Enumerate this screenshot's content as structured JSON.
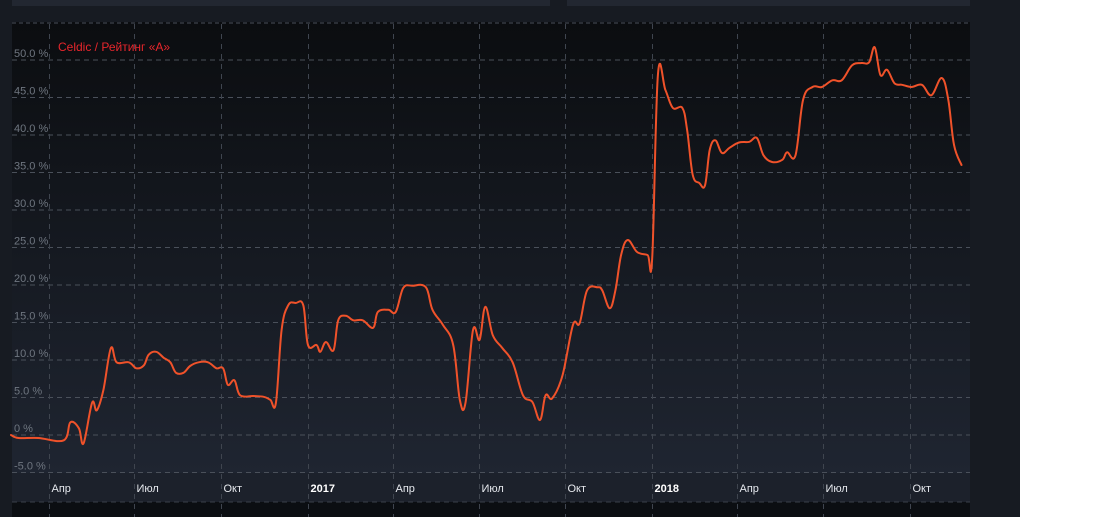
{
  "colors": {
    "line": "#f0522a",
    "title": "#e8262c",
    "background": "#0e1116"
  },
  "chart_data": {
    "type": "line",
    "title": "Celdic / Рейтинг «A»",
    "xlabel": "",
    "ylabel": "",
    "ylim": [
      -5,
      50
    ],
    "y_ticks": [
      "50.0 %",
      "45.0 %",
      "40.0 %",
      "35.0 %",
      "30.0 %",
      "25.0 %",
      "20.0 %",
      "15.0 %",
      "10.0 %",
      "5.0 %",
      "0 %",
      "-5.0 %"
    ],
    "y_tick_values": [
      50,
      45,
      40,
      35,
      30,
      25,
      20,
      15,
      10,
      5,
      0,
      -5
    ],
    "x_ticks": [
      {
        "date": "2016-04-01",
        "label": "Апр"
      },
      {
        "date": "2016-07-01",
        "label": "Июл"
      },
      {
        "date": "2016-10-01",
        "label": "Окт"
      },
      {
        "date": "2017-01-01",
        "label": "2017",
        "year": true
      },
      {
        "date": "2017-04-01",
        "label": "Апр"
      },
      {
        "date": "2017-07-01",
        "label": "Июл"
      },
      {
        "date": "2017-10-01",
        "label": "Окт"
      },
      {
        "date": "2018-01-01",
        "label": "2018",
        "year": true
      },
      {
        "date": "2018-04-01",
        "label": "Апр"
      },
      {
        "date": "2018-07-01",
        "label": "Июл"
      },
      {
        "date": "2018-10-01",
        "label": "Окт"
      }
    ],
    "grid": true,
    "series": [
      {
        "x": [
          "2016-02-21",
          "2016-02-29",
          "2016-03-21",
          "2016-04-17",
          "2016-04-24",
          "2016-05-03",
          "2016-05-08",
          "2016-05-17",
          "2016-05-22",
          "2016-05-29",
          "2016-06-06",
          "2016-06-12",
          "2016-06-25",
          "2016-07-03",
          "2016-07-11",
          "2016-07-16",
          "2016-07-24",
          "2016-08-01",
          "2016-08-08",
          "2016-08-14",
          "2016-08-22",
          "2016-08-29",
          "2016-09-07",
          "2016-09-17",
          "2016-09-26",
          "2016-10-03",
          "2016-10-08",
          "2016-10-15",
          "2016-10-21",
          "2016-11-04",
          "2016-11-15",
          "2016-11-22",
          "2016-11-28",
          "2016-12-04",
          "2016-12-11",
          "2016-12-19",
          "2016-12-27",
          "2017-01-01",
          "2017-01-10",
          "2017-01-14",
          "2017-01-20",
          "2017-01-28",
          "2017-02-02",
          "2017-02-10",
          "2017-02-18",
          "2017-02-28",
          "2017-03-11",
          "2017-03-16",
          "2017-03-27",
          "2017-04-04",
          "2017-04-12",
          "2017-04-22",
          "2017-05-06",
          "2017-05-13",
          "2017-05-24",
          "2017-06-04",
          "2017-06-11",
          "2017-06-17",
          "2017-06-25",
          "2017-07-02",
          "2017-07-08",
          "2017-07-16",
          "2017-07-26",
          "2017-08-06",
          "2017-08-17",
          "2017-08-27",
          "2017-09-04",
          "2017-09-10",
          "2017-09-17",
          "2017-09-28",
          "2017-10-09",
          "2017-10-16",
          "2017-10-24",
          "2017-11-04",
          "2017-11-09",
          "2017-11-17",
          "2017-11-23",
          "2017-11-29",
          "2017-12-06",
          "2017-12-16",
          "2017-12-27",
          "2018-01-01",
          "2018-01-07",
          "2018-01-15",
          "2018-01-23",
          "2018-02-02",
          "2018-02-07",
          "2018-02-13",
          "2018-02-20",
          "2018-02-26",
          "2018-03-03",
          "2018-03-09",
          "2018-03-16",
          "2018-03-24",
          "2018-04-03",
          "2018-04-14",
          "2018-04-22",
          "2018-04-29",
          "2018-05-08",
          "2018-05-19",
          "2018-05-24",
          "2018-06-02",
          "2018-06-10",
          "2018-06-20",
          "2018-06-30",
          "2018-07-11",
          "2018-07-21",
          "2018-08-01",
          "2018-08-11",
          "2018-08-19",
          "2018-08-25",
          "2018-08-31",
          "2018-09-07",
          "2018-09-15",
          "2018-09-23",
          "2018-10-03",
          "2018-10-14",
          "2018-10-24",
          "2018-11-04",
          "2018-11-11",
          "2018-11-17",
          "2018-11-25"
        ],
        "values": [
          0,
          -0.4,
          -0.4,
          -0.7,
          1.7,
          0.9,
          -1.1,
          4.3,
          3.3,
          6.0,
          11.6,
          9.7,
          9.7,
          8.9,
          9.3,
          10.7,
          11.1,
          10.3,
          9.7,
          8.3,
          8.3,
          9.2,
          9.7,
          9.7,
          8.9,
          8.9,
          6.7,
          7.3,
          5.3,
          5.2,
          5.1,
          4.7,
          4.3,
          14.0,
          17.3,
          17.6,
          17.3,
          12.0,
          12.0,
          11.1,
          12.4,
          11.3,
          15.3,
          15.9,
          15.3,
          15.3,
          14.3,
          16.4,
          16.7,
          16.4,
          19.6,
          19.9,
          19.7,
          16.7,
          14.7,
          12.0,
          4.7,
          4.3,
          14.0,
          12.7,
          17.1,
          13.3,
          11.6,
          9.7,
          5.3,
          4.4,
          2.0,
          5.3,
          4.9,
          8.0,
          14.7,
          14.9,
          19.3,
          19.7,
          19.3,
          16.9,
          19.3,
          24.0,
          26.0,
          24.4,
          24.0,
          23.6,
          48.0,
          46.0,
          43.6,
          43.6,
          40.7,
          34.7,
          33.6,
          33.3,
          38.0,
          39.3,
          37.6,
          38.3,
          39.0,
          39.1,
          39.6,
          37.3,
          36.4,
          36.7,
          37.7,
          37.3,
          44.7,
          46.4,
          46.4,
          47.3,
          47.3,
          49.3,
          49.6,
          49.7,
          51.7,
          48.0,
          48.7,
          46.9,
          46.7,
          46.4,
          46.7,
          45.3,
          47.6,
          44.7,
          38.7,
          36.0
        ]
      }
    ]
  }
}
